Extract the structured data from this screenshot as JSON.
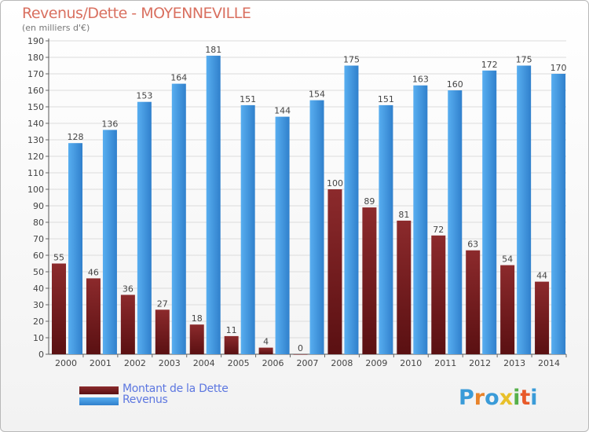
{
  "header": {
    "title": "Revenus/Dette - MOYENNEVILLE",
    "subtitle": "(en milliers d'€)"
  },
  "colors": {
    "dette": "#7a1f22",
    "revenus": "#3f96dd",
    "title": "#d97060",
    "legend_text": "#5d77e0"
  },
  "legend": {
    "dette_label": "Montant de la Dette",
    "revenus_label": "Revenus"
  },
  "logo": {
    "letters": [
      "P",
      "r",
      "o",
      "x",
      "i",
      "t",
      "i"
    ],
    "colors": [
      "#3a9bd8",
      "#e8832a",
      "#3a9bd8",
      "#e8c02a",
      "#56b04a",
      "#e85a2a",
      "#3a9bd8"
    ]
  },
  "chart_data": {
    "type": "bar",
    "title": "Revenus/Dette - MOYENNEVILLE",
    "subtitle": "(en milliers d'€)",
    "categories": [
      "2000",
      "2001",
      "2002",
      "2003",
      "2004",
      "2005",
      "2006",
      "2007",
      "2008",
      "2009",
      "2010",
      "2011",
      "2012",
      "2013",
      "2014"
    ],
    "series": [
      {
        "name": "Montant de la Dette",
        "values": [
          55,
          46,
          36,
          27,
          18,
          11,
          4,
          0,
          100,
          89,
          81,
          72,
          63,
          54,
          44
        ]
      },
      {
        "name": "Revenus",
        "values": [
          128,
          136,
          153,
          164,
          181,
          151,
          144,
          154,
          175,
          151,
          163,
          160,
          172,
          175,
          170
        ]
      }
    ],
    "ylim": [
      0,
      190
    ],
    "ytick_step": 10,
    "grid": true,
    "legend_position": "bottom-left"
  }
}
